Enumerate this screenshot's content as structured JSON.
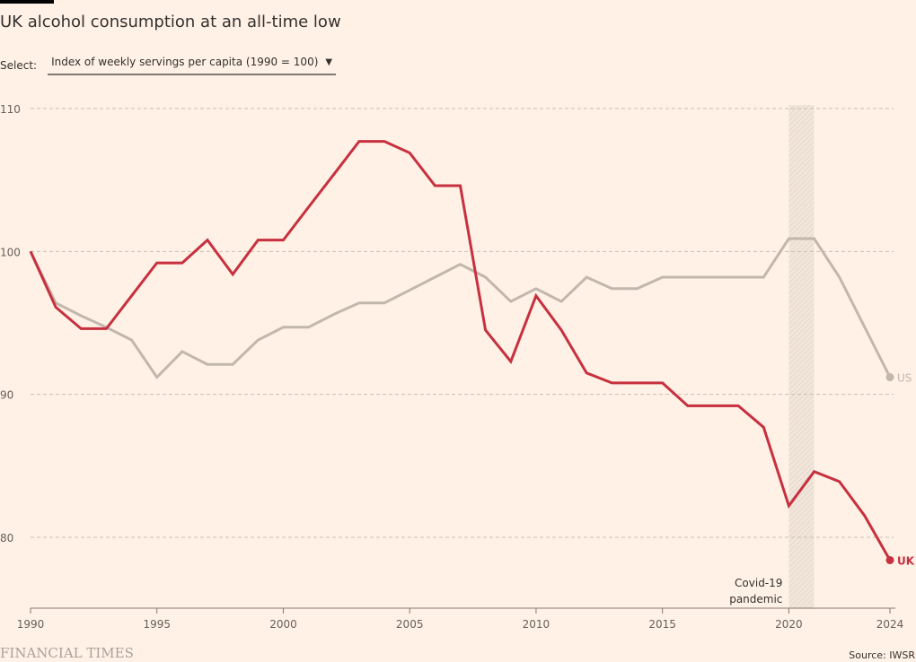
{
  "header": {
    "title": "UK alcohol consumption at an all-time low",
    "select_label": "Select:",
    "select_value": "Index of weekly servings per capita (1990 = 100)",
    "select_caret": "▼"
  },
  "footer": {
    "logo": "FINANCIAL TIMES",
    "source": "Source: IWSR"
  },
  "colors": {
    "background": "#fff1e5",
    "uk": "#c7303f",
    "us": "#c2b7ad",
    "grid": "#c9bdb2",
    "axis": "#807973"
  },
  "chart_data": {
    "type": "line",
    "title": "UK alcohol consumption at an all-time low",
    "xlabel": "",
    "ylabel": "Index of weekly servings per capita (1990 = 100)",
    "x": [
      1990,
      1991,
      1992,
      1993,
      1994,
      1995,
      1996,
      1997,
      1998,
      1999,
      2000,
      2001,
      2002,
      2003,
      2004,
      2005,
      2006,
      2007,
      2008,
      2009,
      2010,
      2011,
      2012,
      2013,
      2014,
      2015,
      2016,
      2017,
      2018,
      2019,
      2020,
      2021,
      2022,
      2023,
      2024
    ],
    "xlim": [
      1990,
      2024
    ],
    "ylim": [
      75,
      110
    ],
    "yticks": [
      80,
      90,
      100,
      110
    ],
    "xticks": [
      1990,
      1995,
      2000,
      2005,
      2010,
      2015,
      2020,
      2024
    ],
    "grid": true,
    "series": [
      {
        "name": "US",
        "label": "US",
        "values": [
          100,
          96.4,
          95.5,
          94.7,
          93.8,
          91.2,
          93.0,
          92.1,
          92.1,
          93.8,
          94.7,
          94.7,
          95.6,
          96.4,
          96.4,
          97.3,
          98.2,
          99.1,
          98.2,
          96.5,
          97.4,
          96.5,
          98.2,
          97.4,
          97.4,
          98.2,
          98.2,
          98.2,
          98.2,
          98.2,
          100.9,
          100.9,
          98.2,
          94.7,
          91.2
        ]
      },
      {
        "name": "UK",
        "label": "UK",
        "values": [
          100,
          96.1,
          94.6,
          94.6,
          96.9,
          99.2,
          99.2,
          100.8,
          98.4,
          100.8,
          100.8,
          103.1,
          105.4,
          107.7,
          107.7,
          106.9,
          104.6,
          104.6,
          94.5,
          92.3,
          96.9,
          94.5,
          91.5,
          90.8,
          90.8,
          90.8,
          89.2,
          89.2,
          89.2,
          87.7,
          82.2,
          84.6,
          83.9,
          81.5,
          78.4
        ]
      }
    ],
    "annotations": [
      {
        "type": "band",
        "x_start": 2020,
        "x_end": 2021,
        "label_lines": [
          "Covid-19",
          "pandemic"
        ]
      }
    ],
    "legend": "inline-end-labels"
  }
}
